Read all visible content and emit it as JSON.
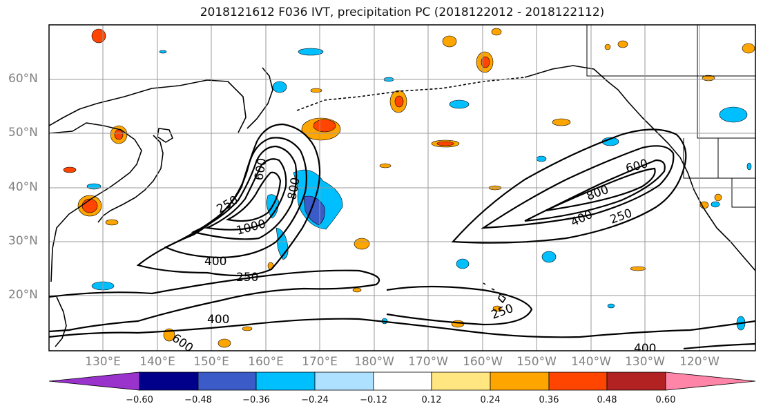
{
  "title": "2018121612 F036 IVT, precipitation PC (2018122012 - 2018122112)",
  "lat_labels": [
    "60°N",
    "50°N",
    "40°N",
    "30°N",
    "20°N"
  ],
  "lon_labels": [
    "130°E",
    "140°E",
    "150°E",
    "160°E",
    "170°E",
    "180°W",
    "170°W",
    "160°W",
    "150°W",
    "140°W",
    "130°W",
    "120°W"
  ],
  "colorbar": {
    "ticks": [
      "−0.60",
      "−0.48",
      "−0.36",
      "−0.24",
      "−0.12",
      "0.12",
      "0.24",
      "0.36",
      "0.48",
      "0.60"
    ],
    "colors": [
      "#9933cc",
      "#00008b",
      "#3a5bc8",
      "#00bfff",
      "#aee0ff",
      "#ffffff",
      "#ffe680",
      "#ffa500",
      "#ff4500",
      "#b22222",
      "#ff85a8"
    ]
  },
  "contour_labels": {
    "w250": "250",
    "w1000": "1000",
    "w400": "400",
    "w250b": "250",
    "w600": "600",
    "w800": "800",
    "s400": "400",
    "s600": "600",
    "e600": "600",
    "e800": "800",
    "e400": "400",
    "e250": "250",
    "c250": "250",
    "se400": "400"
  }
}
